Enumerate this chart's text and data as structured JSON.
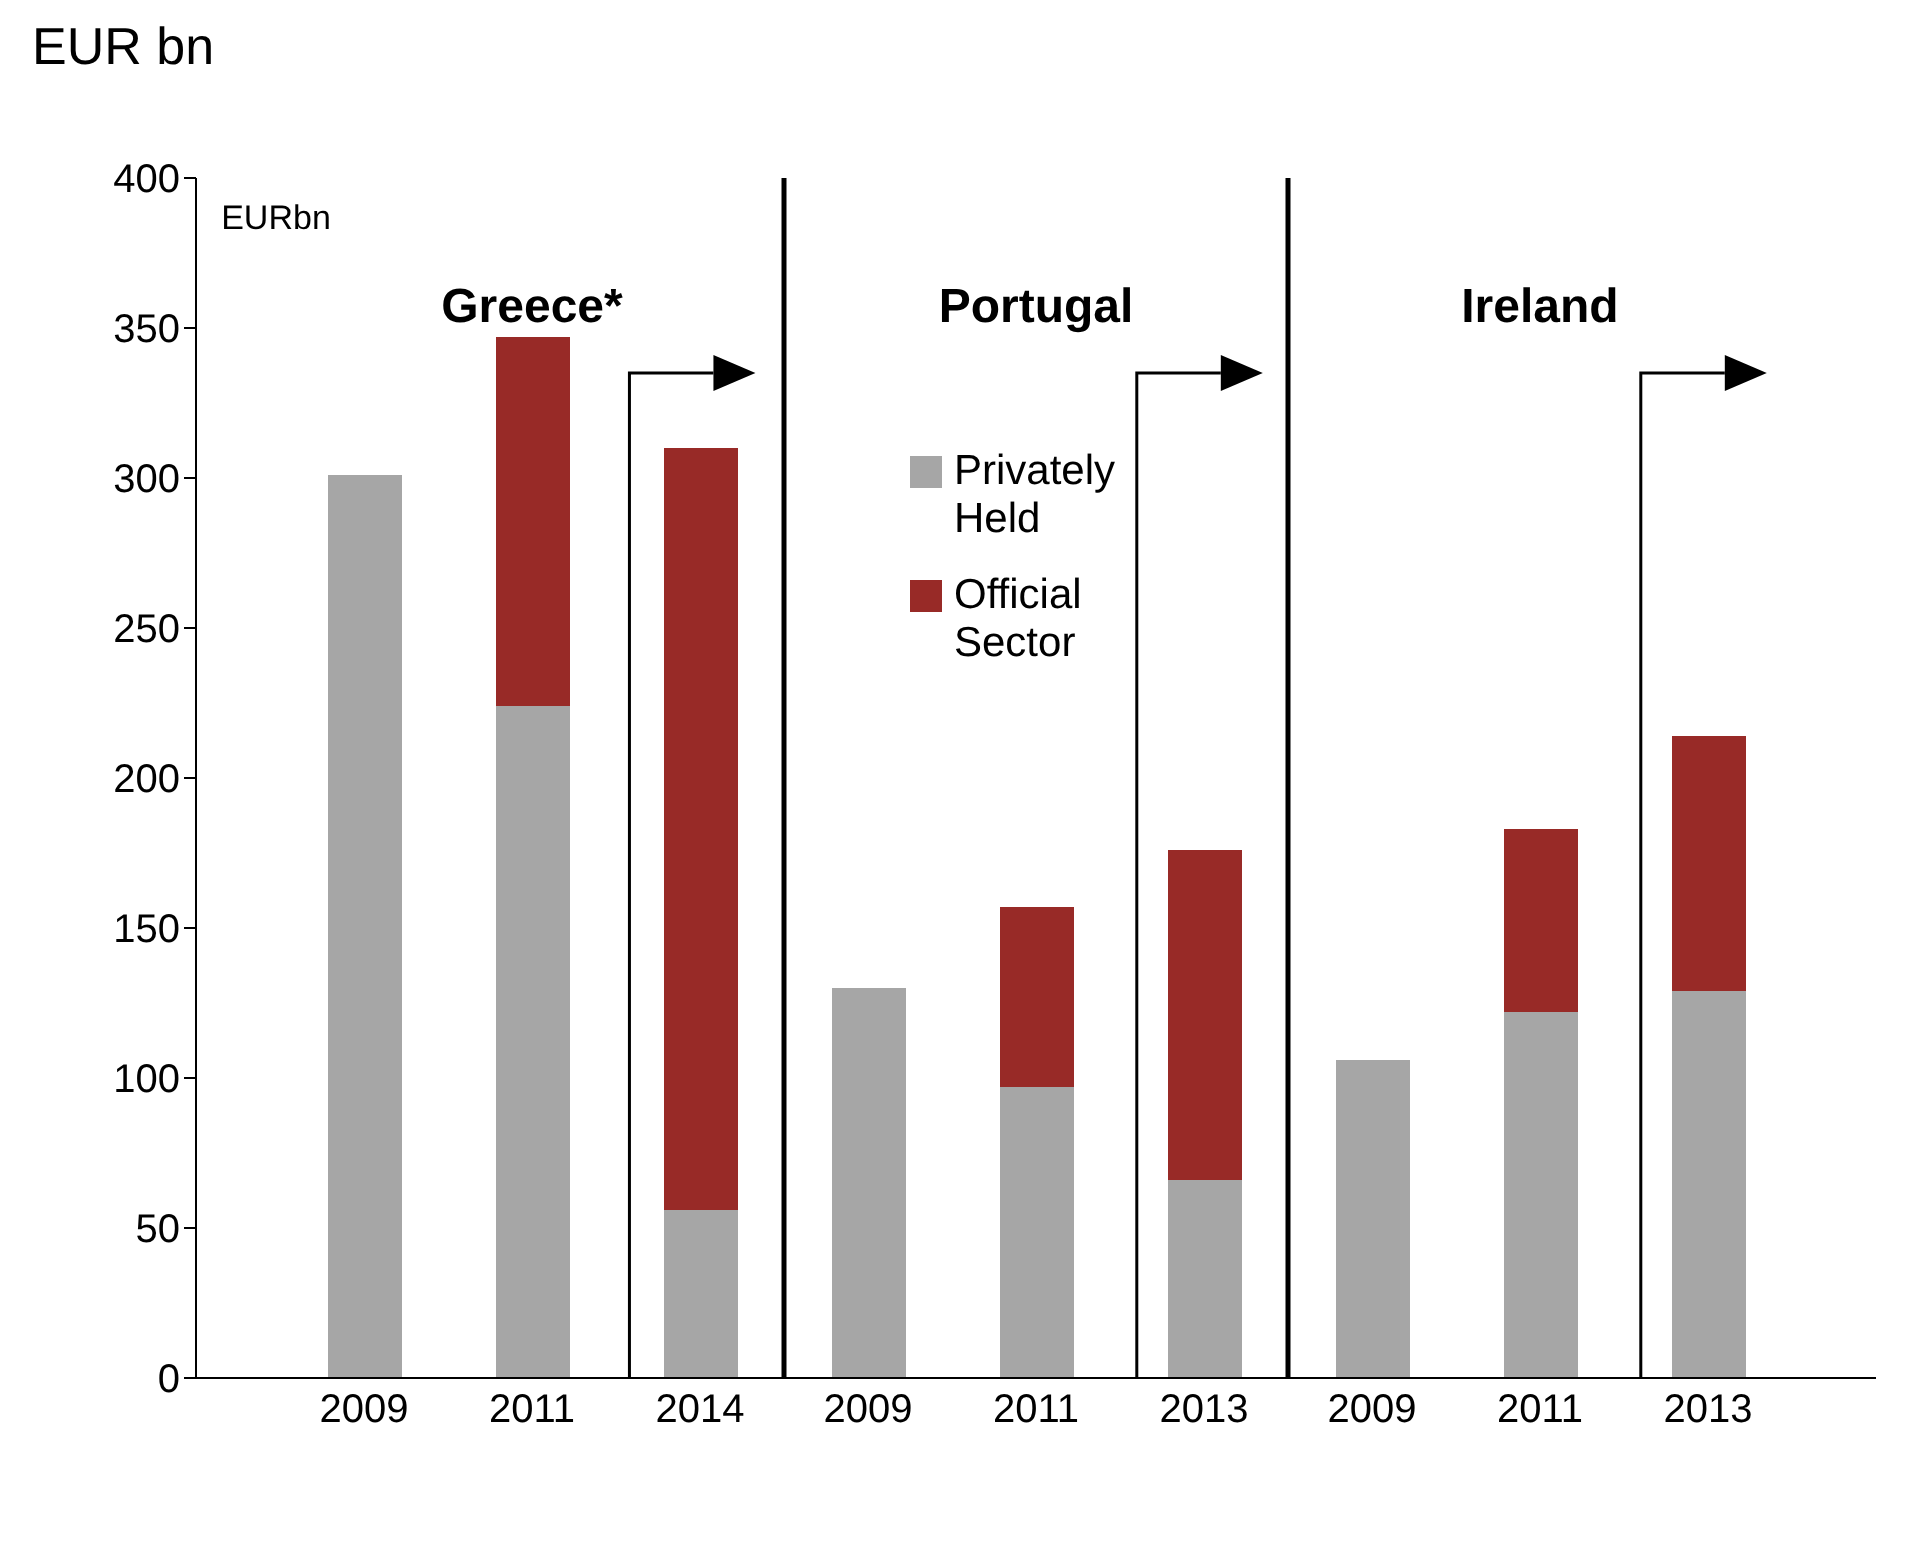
{
  "chart_data": {
    "type": "bar",
    "title": "EUR bn",
    "stacked": true,
    "categories": [
      "2009",
      "2011",
      "2014",
      "2009",
      "2011",
      "2013",
      "2009",
      "2011",
      "2013"
    ],
    "series": [
      {
        "name": "Privately Held",
        "color": "#a6a6a6",
        "values": [
          301,
          224,
          56,
          130,
          97,
          66,
          106,
          122,
          129
        ]
      },
      {
        "name": "Official Sector",
        "color": "#982a27",
        "values": [
          null,
          123,
          254,
          null,
          60,
          110,
          null,
          61,
          85
        ]
      }
    ],
    "ylim": [
      0,
      400
    ],
    "yticks": [
      0,
      50,
      100,
      150,
      200,
      250,
      300,
      350,
      400
    ],
    "legend": "top",
    "annotations": [
      "EURbn",
      "Greece*",
      "Portugal",
      "Ireland"
    ]
  }
}
